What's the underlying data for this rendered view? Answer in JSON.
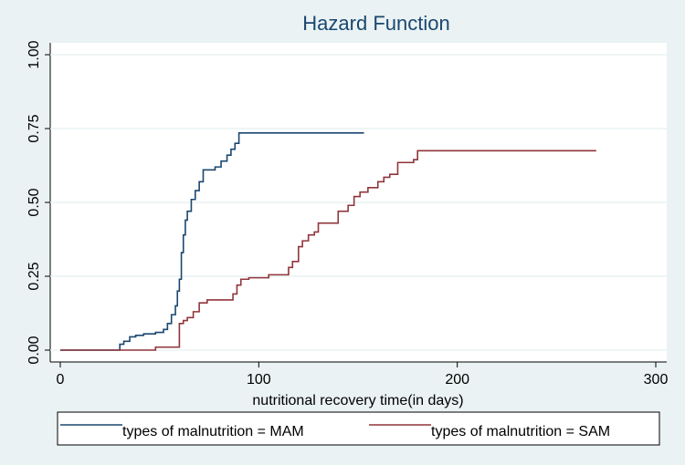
{
  "chart_data": {
    "type": "line",
    "step": true,
    "title": "Hazard Function",
    "x_label": "nutritional recovery  time(in days)",
    "xlim": [
      0,
      300
    ],
    "xticks": [
      0,
      100,
      200,
      300
    ],
    "ylim": [
      0,
      1
    ],
    "yticks": [
      {
        "value": 0,
        "label": "0.00"
      },
      {
        "value": 0.25,
        "label": "0.25"
      },
      {
        "value": 0.5,
        "label": "0.50"
      },
      {
        "value": 0.75,
        "label": "0.75"
      },
      {
        "value": 1,
        "label": "1.00"
      }
    ],
    "grid": true,
    "legend": "bottom",
    "series": [
      {
        "name": "types of malnutrition = MAM",
        "color": "#1a476f",
        "x": [
          0,
          30,
          32,
          35,
          38,
          42,
          48,
          52,
          54,
          56,
          58,
          59,
          60,
          61,
          62,
          63,
          64,
          66,
          68,
          70,
          72,
          78,
          81,
          84,
          86,
          88,
          90,
          153
        ],
        "values": [
          0,
          0.02,
          0.03,
          0.045,
          0.05,
          0.055,
          0.06,
          0.07,
          0.09,
          0.12,
          0.15,
          0.2,
          0.24,
          0.33,
          0.39,
          0.44,
          0.47,
          0.51,
          0.54,
          0.57,
          0.61,
          0.62,
          0.64,
          0.66,
          0.68,
          0.7,
          0.735,
          0.735
        ]
      },
      {
        "name": "types of malnutrition = SAM",
        "color": "#90353b",
        "x": [
          0,
          48,
          60,
          62,
          64,
          67,
          70,
          74,
          87,
          89,
          91,
          95,
          105,
          115,
          117,
          120,
          122,
          125,
          128,
          130,
          140,
          145,
          148,
          151,
          155,
          160,
          163,
          166,
          170,
          178,
          180,
          270
        ],
        "values": [
          0,
          0.01,
          0.09,
          0.1,
          0.11,
          0.13,
          0.16,
          0.17,
          0.19,
          0.22,
          0.24,
          0.245,
          0.255,
          0.28,
          0.3,
          0.35,
          0.37,
          0.39,
          0.4,
          0.43,
          0.47,
          0.49,
          0.52,
          0.535,
          0.55,
          0.57,
          0.585,
          0.595,
          0.635,
          0.645,
          0.675,
          0.675
        ]
      }
    ]
  }
}
